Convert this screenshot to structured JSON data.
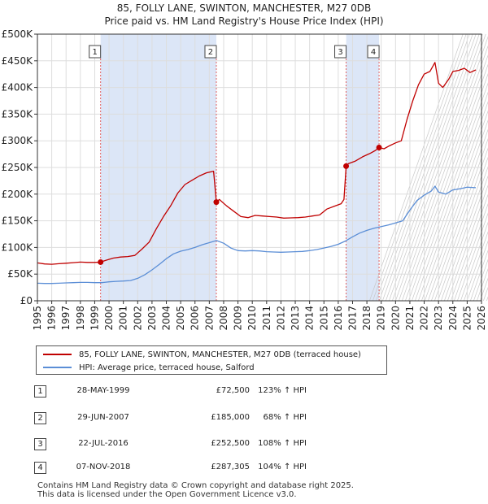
{
  "title_line1": "85, FOLLY LANE, SWINTON, MANCHESTER, M27 0DB",
  "title_line2": "Price paid vs. HM Land Registry's House Price Index (HPI)",
  "chart_data": {
    "type": "line",
    "xlim": [
      1995,
      2026
    ],
    "ylim": [
      0,
      500000
    ],
    "y_ticks": [
      0,
      50000,
      100000,
      150000,
      200000,
      250000,
      300000,
      350000,
      400000,
      450000,
      500000
    ],
    "y_tick_labels": [
      "£0",
      "£50K",
      "£100K",
      "£150K",
      "£200K",
      "£250K",
      "£300K",
      "£350K",
      "£400K",
      "£450K",
      "£500K"
    ],
    "x_tick_labels": [
      "1995",
      "1996",
      "1997",
      "1998",
      "1999",
      "2000",
      "2001",
      "2002",
      "2003",
      "2004",
      "2005",
      "2006",
      "2007",
      "2008",
      "2009",
      "2010",
      "2011",
      "2012",
      "2013",
      "2014",
      "2015",
      "2016",
      "2017",
      "2018",
      "2019",
      "2020",
      "2021",
      "2022",
      "2023",
      "2024",
      "2025",
      "2026"
    ],
    "colors": {
      "property": "#c00000",
      "hpi": "#5b8ed6",
      "shade": "#dce6f7",
      "marker_line": "#e06060",
      "grid": "#dddddd"
    },
    "series": [
      {
        "name": "85, FOLLY LANE, SWINTON, MANCHESTER, M27 0DB (terraced house)",
        "x": [
          1995.0,
          1995.5,
          1996.0,
          1996.5,
          1997.0,
          1997.5,
          1998.0,
          1998.5,
          1999.0,
          1999.41,
          1999.8,
          2000.3,
          2000.8,
          2001.3,
          2001.8,
          2002.3,
          2002.8,
          2003.3,
          2003.8,
          2004.3,
          2004.8,
          2005.3,
          2005.8,
          2006.3,
          2006.8,
          2007.3,
          2007.49,
          2007.7,
          2008.2,
          2008.7,
          2009.2,
          2009.7,
          2010.2,
          2010.7,
          2011.2,
          2011.7,
          2012.2,
          2012.7,
          2013.2,
          2013.7,
          2014.2,
          2014.7,
          2015.2,
          2015.7,
          2016.2,
          2016.4,
          2016.55,
          2016.7,
          2017.2,
          2017.7,
          2018.2,
          2018.6,
          2018.85,
          2019.2,
          2019.6,
          2020.0,
          2020.4,
          2020.8,
          2021.2,
          2021.6,
          2022.0,
          2022.4,
          2022.75,
          2023.0,
          2023.3,
          2023.7,
          2024.0,
          2024.4,
          2024.8,
          2025.2,
          2025.6
        ],
        "values": [
          71000,
          69000,
          68500,
          69500,
          70500,
          71500,
          72500,
          72000,
          72000,
          72500,
          76000,
          80000,
          82000,
          83000,
          85000,
          97000,
          110000,
          135000,
          158000,
          178000,
          202000,
          218000,
          226000,
          234000,
          240000,
          243000,
          185000,
          190000,
          178000,
          168000,
          158000,
          156000,
          160000,
          159000,
          158000,
          157000,
          155000,
          155500,
          156000,
          157000,
          159000,
          161000,
          172000,
          177000,
          182000,
          190000,
          252500,
          257000,
          262000,
          270000,
          276000,
          282000,
          287305,
          285000,
          291000,
          296000,
          300000,
          340000,
          375000,
          405000,
          425000,
          430000,
          447000,
          408000,
          400000,
          415000,
          430000,
          432000,
          436000,
          428000,
          433000
        ]
      },
      {
        "name": "HPI: Average price, terraced house, Salford",
        "x": [
          1995.0,
          1995.5,
          1996.0,
          1996.5,
          1997.0,
          1997.5,
          1998.0,
          1998.5,
          1999.0,
          1999.5,
          2000.0,
          2000.5,
          2001.0,
          2001.5,
          2002.0,
          2002.5,
          2003.0,
          2003.5,
          2004.0,
          2004.5,
          2005.0,
          2005.5,
          2006.0,
          2006.5,
          2007.0,
          2007.5,
          2008.0,
          2008.5,
          2009.0,
          2009.5,
          2010.0,
          2010.5,
          2011.0,
          2011.5,
          2012.0,
          2012.5,
          2013.0,
          2013.5,
          2014.0,
          2014.5,
          2015.0,
          2015.5,
          2016.0,
          2016.5,
          2017.0,
          2017.5,
          2018.0,
          2018.5,
          2019.0,
          2019.5,
          2020.0,
          2020.5,
          2021.0,
          2021.5,
          2022.0,
          2022.5,
          2022.75,
          2023.0,
          2023.5,
          2024.0,
          2024.5,
          2025.0,
          2025.6
        ],
        "values": [
          33000,
          32500,
          32500,
          33000,
          33500,
          34000,
          34500,
          34500,
          34000,
          34000,
          35500,
          36500,
          37000,
          38000,
          42000,
          49000,
          58000,
          68000,
          79000,
          88000,
          93000,
          96000,
          100000,
          105000,
          109000,
          113000,
          108000,
          99000,
          94000,
          93500,
          94000,
          93500,
          92000,
          91500,
          91000,
          91500,
          92000,
          92500,
          94000,
          96000,
          99000,
          102000,
          106000,
          112000,
          120000,
          127000,
          132000,
          136000,
          139000,
          142000,
          146000,
          150000,
          170000,
          188000,
          198000,
          206000,
          215000,
          204000,
          200000,
          208000,
          210000,
          213000,
          212000
        ]
      }
    ],
    "transactions": [
      {
        "num": "1",
        "year": 1999.41,
        "value": 72500
      },
      {
        "num": "2",
        "year": 2007.49,
        "value": 185000
      },
      {
        "num": "3",
        "year": 2016.55,
        "value": 252500
      },
      {
        "num": "4",
        "year": 2018.85,
        "value": 287305
      }
    ]
  },
  "legend": {
    "property": "85, FOLLY LANE, SWINTON, MANCHESTER, M27 0DB (terraced house)",
    "hpi": "HPI: Average price, terraced house, Salford"
  },
  "table": [
    {
      "num": "1",
      "date": "28-MAY-1999",
      "price": "£72,500",
      "hpi": "123% ↑ HPI"
    },
    {
      "num": "2",
      "date": "29-JUN-2007",
      "price": "£185,000",
      "hpi": "68% ↑ HPI"
    },
    {
      "num": "3",
      "date": "22-JUL-2016",
      "price": "£252,500",
      "hpi": "108% ↑ HPI"
    },
    {
      "num": "4",
      "date": "07-NOV-2018",
      "price": "£287,305",
      "hpi": "104% ↑ HPI"
    }
  ],
  "footer_line1": "Contains HM Land Registry data © Crown copyright and database right 2025.",
  "footer_line2": "This data is licensed under the Open Government Licence v3.0."
}
